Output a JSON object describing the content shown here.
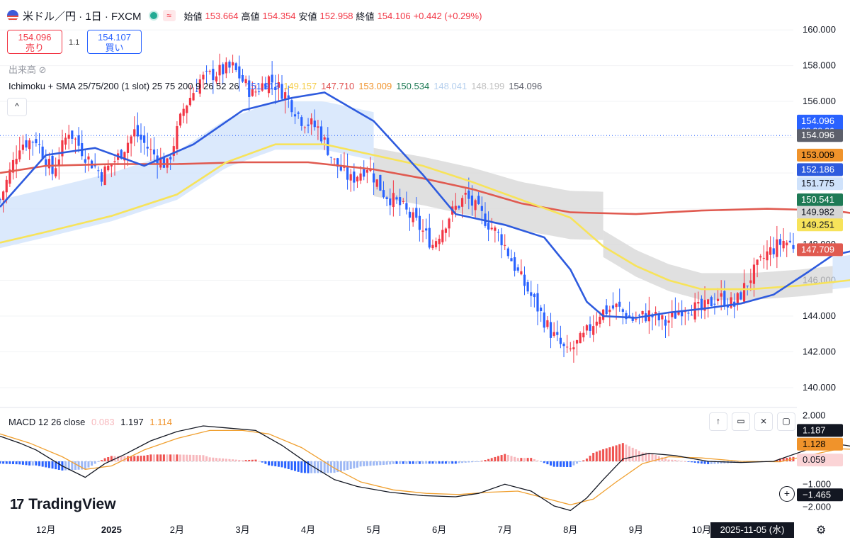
{
  "header": {
    "symbol": "米ドル／円 · 1日 · FXCM",
    "wave_icon": "≈",
    "open_label": "始値",
    "open_value": "153.664",
    "high_label": "高値",
    "high_value": "154.354",
    "low_label": "安値",
    "low_value": "152.958",
    "close_label": "終値",
    "close_value": "154.106",
    "change": "+0.442 (+0.29%)"
  },
  "trade": {
    "sell_price": "154.096",
    "sell_label": "売り",
    "spread": "1.1",
    "buy_price": "154.107",
    "buy_label": "買い"
  },
  "volume_label": "出来高",
  "indicator": {
    "label": "Ichimoku + SMA 25/75/200 (1 slot) 25 75 200 9 26 52 26",
    "values": [
      {
        "text": "151.913",
        "color": "#2962ff"
      },
      {
        "text": "149.157",
        "color": "#f5cd48"
      },
      {
        "text": "147.710",
        "color": "#e05050"
      },
      {
        "text": "153.009",
        "color": "#f0932b"
      },
      {
        "text": "150.534",
        "color": "#1e7a55"
      },
      {
        "text": "148.041",
        "color": "#b6d0ee"
      },
      {
        "text": "148.199",
        "color": "#c0c0c0"
      },
      {
        "text": "154.096",
        "color": "#5d606b"
      }
    ]
  },
  "macd_legend": {
    "label": "MACD 12 26 close",
    "hist": "0.083",
    "macd": "1.197",
    "signal": "1.114"
  },
  "colors": {
    "up": "#f23645",
    "down": "#2962ff",
    "sma25": "#2e5bde",
    "sma75": "#f7e35a",
    "sma200": "#e05a50",
    "cloud_bull": "#cfe2fb",
    "cloud_bear": "#d6d6d6",
    "macd_line": "#131722",
    "signal_line": "#f0a030"
  },
  "branding": "TradingView",
  "toolbar_icons": [
    "arrow-up-icon",
    "trash-icon",
    "collapse-icon",
    "maximize-icon"
  ],
  "bottom_right_date": "2025-11-05 (水)",
  "chart_data": [
    {
      "type": "candlestick",
      "title": "米ドル／円 · 1日 · FXCM",
      "y_axis_ticks": [
        "160.000",
        "158.000",
        "156.000",
        "154.000",
        "152.000",
        "150.000",
        "148.000",
        "146.000",
        "144.000",
        "142.000",
        "140.000"
      ],
      "ylim": [
        139.8,
        160.8
      ],
      "x_axis_ticks": [
        "12月",
        "2025",
        "2月",
        "3月",
        "4月",
        "5月",
        "6月",
        "7月",
        "8月",
        "9月",
        "10月"
      ],
      "x_ticks_domain": [
        0,
        20,
        40,
        60,
        80,
        100,
        120,
        140,
        160,
        180,
        200
      ],
      "x_range_days": [
        -14,
        228
      ],
      "close_path": [
        [
          -14,
          150.5
        ],
        [
          -8,
          153.6
        ],
        [
          -3,
          153.9
        ],
        [
          2,
          152.0
        ],
        [
          7,
          154.4
        ],
        [
          12,
          153.0
        ],
        [
          17,
          151.9
        ],
        [
          22,
          152.9
        ],
        [
          27,
          154.3
        ],
        [
          32,
          153.2
        ],
        [
          37,
          152.4
        ],
        [
          42,
          155.6
        ],
        [
          47,
          157.2
        ],
        [
          52,
          157.6
        ],
        [
          57,
          157.9
        ],
        [
          63,
          156.4
        ],
        [
          68,
          157.3
        ],
        [
          73,
          156.4
        ],
        [
          78,
          155.0
        ],
        [
          83,
          154.5
        ],
        [
          88,
          152.6
        ],
        [
          93,
          151.6
        ],
        [
          98,
          152.4
        ],
        [
          103,
          150.9
        ],
        [
          108,
          150.2
        ],
        [
          113,
          149.2
        ],
        [
          118,
          148.0
        ],
        [
          123,
          149.6
        ],
        [
          128,
          150.7
        ],
        [
          134,
          149.4
        ],
        [
          139,
          148.3
        ],
        [
          144,
          146.4
        ],
        [
          149,
          144.8
        ],
        [
          154,
          143.1
        ],
        [
          159,
          141.9
        ],
        [
          164,
          142.8
        ],
        [
          169,
          144.2
        ],
        [
          174,
          144.5
        ],
        [
          179,
          143.8
        ],
        [
          184,
          144.1
        ],
        [
          189,
          143.6
        ],
        [
          195,
          144.6
        ],
        [
          200,
          144.3
        ],
        [
          205,
          145.1
        ],
        [
          210,
          144.6
        ],
        [
          215,
          146.2
        ],
        [
          220,
          147.5
        ],
        [
          225,
          148.2
        ],
        [
          230,
          147.8
        ],
        [
          236,
          150.6
        ],
        [
          241,
          147.2
        ],
        [
          246,
          147.4
        ],
        [
          251,
          147.2
        ],
        [
          256,
          147.6
        ],
        [
          261,
          147.3
        ],
        [
          266,
          148.1
        ],
        [
          271,
          147.0
        ],
        [
          277,
          147.2
        ],
        [
          282,
          146.9
        ],
        [
          287,
          148.6
        ],
        [
          292,
          149.9
        ],
        [
          297,
          151.7
        ],
        [
          302,
          150.6
        ],
        [
          307,
          151.3
        ],
        [
          313,
          152.7
        ],
        [
          318,
          154.1
        ]
      ],
      "series_lines": [
        {
          "name": "SMA 25",
          "last": 152.186,
          "points": [
            [
              -14,
              150.1
            ],
            [
              0,
              153.0
            ],
            [
              15,
              153.4
            ],
            [
              30,
              152.4
            ],
            [
              45,
              153.6
            ],
            [
              60,
              155.5
            ],
            [
              75,
              156.2
            ],
            [
              85,
              156.5
            ],
            [
              100,
              154.9
            ],
            [
              115,
              151.9
            ],
            [
              125,
              149.7
            ],
            [
              140,
              149.1
            ],
            [
              152,
              148.4
            ],
            [
              160,
              146.6
            ],
            [
              165,
              144.8
            ],
            [
              170,
              144.0
            ],
            [
              180,
              143.9
            ],
            [
              190,
              144.2
            ],
            [
              200,
              144.4
            ],
            [
              212,
              144.7
            ],
            [
              222,
              145.2
            ],
            [
              232,
              146.4
            ],
            [
              240,
              147.4
            ],
            [
              250,
              147.8
            ],
            [
              260,
              148.0
            ],
            [
              270,
              147.7
            ],
            [
              282,
              147.6
            ],
            [
              292,
              148.2
            ],
            [
              302,
              150.2
            ],
            [
              312,
              151.2
            ],
            [
              318,
              152.2
            ]
          ]
        },
        {
          "name": "SMA 75",
          "last": 149.251,
          "points": [
            [
              -14,
              148.1
            ],
            [
              0,
              148.7
            ],
            [
              20,
              149.6
            ],
            [
              40,
              150.8
            ],
            [
              55,
              152.6
            ],
            [
              70,
              153.6
            ],
            [
              85,
              153.6
            ],
            [
              100,
              153.0
            ],
            [
              115,
              152.4
            ],
            [
              130,
              151.5
            ],
            [
              145,
              150.5
            ],
            [
              160,
              149.5
            ],
            [
              170,
              147.9
            ],
            [
              180,
              146.8
            ],
            [
              190,
              146.0
            ],
            [
              200,
              145.5
            ],
            [
              215,
              145.5
            ],
            [
              230,
              145.7
            ],
            [
              245,
              146.0
            ],
            [
              260,
              146.4
            ],
            [
              275,
              146.9
            ],
            [
              290,
              147.4
            ],
            [
              305,
              148.4
            ],
            [
              318,
              149.3
            ]
          ]
        },
        {
          "name": "SMA 200",
          "last": 147.709,
          "points": [
            [
              -14,
              152.0
            ],
            [
              0,
              152.4
            ],
            [
              20,
              152.5
            ],
            [
              40,
              152.5
            ],
            [
              60,
              152.6
            ],
            [
              80,
              152.6
            ],
            [
              100,
              152.2
            ],
            [
              115,
              151.7
            ],
            [
              130,
              151.1
            ],
            [
              145,
              150.3
            ],
            [
              160,
              149.8
            ],
            [
              180,
              149.7
            ],
            [
              200,
              149.9
            ],
            [
              220,
              150.0
            ],
            [
              240,
              149.9
            ],
            [
              260,
              149.4
            ],
            [
              275,
              148.9
            ],
            [
              290,
              148.5
            ],
            [
              305,
              148.0
            ],
            [
              318,
              147.7
            ]
          ]
        }
      ],
      "price_labels": [
        {
          "text": "154.096",
          "sub": "23:38:36",
          "y": 154.9,
          "bg": "#2962ff",
          "color": "#ffffff"
        },
        {
          "text": "154.096",
          "y": 154.096,
          "bg": "#5d606b",
          "color": "#ffffff"
        },
        {
          "text": "153.009",
          "y": 153.0,
          "bg": "#f0932b",
          "color": "#000000"
        },
        {
          "text": "152.186",
          "y": 152.186,
          "bg": "#2e5bde",
          "color": "#ffffff"
        },
        {
          "text": "151.775",
          "y": 151.4,
          "bg": "#cfe2fb",
          "color": "#131722"
        },
        {
          "text": "150.541",
          "y": 150.5,
          "bg": "#1e7a55",
          "color": "#ffffff"
        },
        {
          "text": "149.982",
          "y": 149.8,
          "bg": "#d6d6d6",
          "color": "#131722"
        },
        {
          "text": "149.251",
          "y": 149.1,
          "bg": "#f7e35a",
          "color": "#131722"
        },
        {
          "text": "147.709",
          "y": 147.709,
          "bg": "#e05a50",
          "color": "#ffffff"
        }
      ]
    },
    {
      "type": "macd",
      "title": "MACD 12 26 close",
      "y_axis_ticks": [
        "2.000",
        "−1.000",
        "−2.000"
      ],
      "tick_values": [
        2,
        -1,
        -2
      ],
      "ylim": [
        -2.2,
        2.2
      ],
      "macd_path": [
        [
          -14,
          1.1
        ],
        [
          -8,
          0.8
        ],
        [
          -3,
          0.5
        ],
        [
          5,
          -0.2
        ],
        [
          12,
          -0.7
        ],
        [
          18,
          -0.1
        ],
        [
          24,
          0.3
        ],
        [
          32,
          0.9
        ],
        [
          40,
          1.3
        ],
        [
          48,
          1.55
        ],
        [
          56,
          1.45
        ],
        [
          64,
          1.35
        ],
        [
          72,
          0.7
        ],
        [
          80,
          -0.1
        ],
        [
          88,
          -0.8
        ],
        [
          95,
          -1.1
        ],
        [
          105,
          -1.35
        ],
        [
          115,
          -1.5
        ],
        [
          125,
          -1.55
        ],
        [
          132,
          -1.4
        ],
        [
          140,
          -1.0
        ],
        [
          148,
          -1.3
        ],
        [
          155,
          -1.95
        ],
        [
          160,
          -2.15
        ],
        [
          165,
          -1.6
        ],
        [
          170,
          -0.8
        ],
        [
          176,
          0.1
        ],
        [
          184,
          0.35
        ],
        [
          192,
          0.25
        ],
        [
          202,
          0.0
        ],
        [
          212,
          -0.05
        ],
        [
          222,
          0.0
        ],
        [
          232,
          0.5
        ],
        [
          238,
          0.8
        ],
        [
          244,
          0.7
        ],
        [
          250,
          0.55
        ],
        [
          260,
          0.25
        ],
        [
          270,
          0.05
        ],
        [
          282,
          -0.05
        ],
        [
          290,
          0.1
        ],
        [
          298,
          0.7
        ],
        [
          304,
          1.05
        ],
        [
          310,
          1.1
        ],
        [
          318,
          1.19
        ]
      ],
      "signal_path": [
        [
          -14,
          1.2
        ],
        [
          -5,
          0.8
        ],
        [
          5,
          0.2
        ],
        [
          12,
          -0.35
        ],
        [
          20,
          -0.2
        ],
        [
          30,
          0.5
        ],
        [
          40,
          1.0
        ],
        [
          50,
          1.35
        ],
        [
          60,
          1.35
        ],
        [
          68,
          1.2
        ],
        [
          78,
          0.6
        ],
        [
          88,
          -0.3
        ],
        [
          96,
          -0.9
        ],
        [
          106,
          -1.25
        ],
        [
          116,
          -1.4
        ],
        [
          126,
          -1.45
        ],
        [
          135,
          -1.35
        ],
        [
          144,
          -1.3
        ],
        [
          152,
          -1.6
        ],
        [
          160,
          -1.9
        ],
        [
          167,
          -1.65
        ],
        [
          174,
          -0.9
        ],
        [
          182,
          -0.1
        ],
        [
          190,
          0.2
        ],
        [
          200,
          0.15
        ],
        [
          212,
          0.0
        ],
        [
          224,
          -0.02
        ],
        [
          234,
          0.3
        ],
        [
          242,
          0.55
        ],
        [
          252,
          0.5
        ],
        [
          262,
          0.3
        ],
        [
          274,
          0.1
        ],
        [
          286,
          0.0
        ],
        [
          294,
          0.3
        ],
        [
          302,
          0.8
        ],
        [
          310,
          1.0
        ],
        [
          318,
          1.13
        ]
      ],
      "price_labels": [
        {
          "text": "1.187",
          "y": 1.35,
          "bg": "#131722",
          "color": "#ffffff"
        },
        {
          "text": "1.128",
          "y": 0.75,
          "bg": "#f0932b",
          "color": "#000000"
        },
        {
          "text": "0.059",
          "y": 0.059,
          "bg": "#fbd4d6",
          "color": "#131722"
        },
        {
          "text": "−1.465",
          "y": -1.465,
          "bg": "#131722",
          "color": "#ffffff"
        }
      ]
    }
  ]
}
